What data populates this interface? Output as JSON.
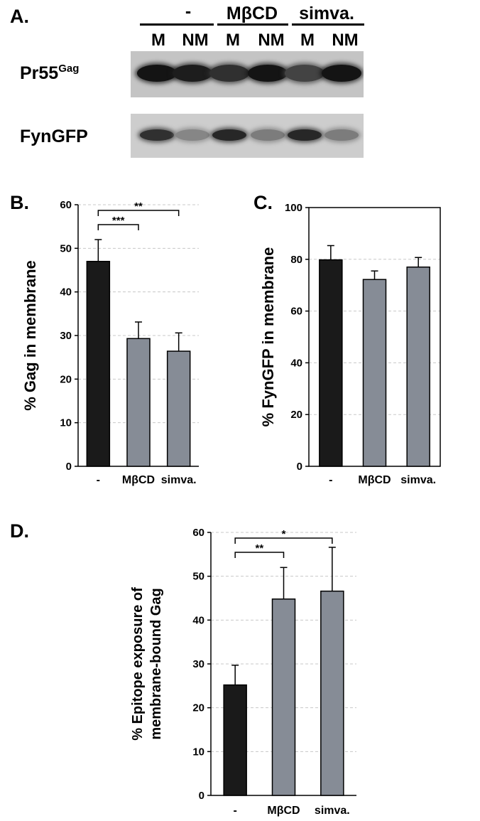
{
  "panels": {
    "A": {
      "label": "A."
    },
    "B": {
      "label": "B."
    },
    "C": {
      "label": "C."
    },
    "D": {
      "label": "D."
    }
  },
  "blot": {
    "group_headers": [
      "-",
      "MβCD",
      "simva."
    ],
    "lane_labels": [
      "M",
      "NM",
      "M",
      "NM",
      "M",
      "NM"
    ],
    "rows": [
      {
        "label_main": "Pr55",
        "label_sup": "Gag",
        "intensities": [
          0.95,
          0.9,
          0.8,
          0.95,
          0.7,
          0.95
        ]
      },
      {
        "label_main": "FynGFP",
        "label_sup": "",
        "intensities": [
          0.8,
          0.35,
          0.85,
          0.4,
          0.85,
          0.4
        ]
      }
    ]
  },
  "chart_data": [
    {
      "panel": "B",
      "type": "bar",
      "categories": [
        "-",
        "MβCD",
        "simva."
      ],
      "values": [
        47,
        29.3,
        26.4
      ],
      "errors": [
        5,
        3.8,
        4.2
      ],
      "ylabel": "% Gag in membrane",
      "ylim": [
        0,
        60
      ],
      "yticks": [
        0,
        10,
        20,
        30,
        40,
        50,
        60
      ],
      "bar_colors": [
        "#1a1a1a",
        "#868c96",
        "#868c96"
      ],
      "grid": true,
      "significance": [
        {
          "from": 0,
          "to": 1,
          "label": "***"
        },
        {
          "from": 0,
          "to": 2,
          "label": "**"
        }
      ]
    },
    {
      "panel": "C",
      "type": "bar",
      "categories": [
        "-",
        "MβCD",
        "simva."
      ],
      "values": [
        79.8,
        72.2,
        77
      ],
      "errors": [
        5.5,
        3.3,
        3.7
      ],
      "ylabel": "% FynGFP in membrane",
      "ylim": [
        0,
        100
      ],
      "yticks": [
        0,
        20,
        40,
        60,
        80,
        100
      ],
      "bar_colors": [
        "#1a1a1a",
        "#868c96",
        "#868c96"
      ],
      "grid": true,
      "significance": []
    },
    {
      "panel": "D",
      "type": "bar",
      "categories": [
        "-",
        "MβCD",
        "simva."
      ],
      "values": [
        25.2,
        44.8,
        46.6
      ],
      "errors": [
        4.5,
        7.2,
        10
      ],
      "ylabel": "% Epitope exposure of",
      "ylabel2": "membrane-bound Gag",
      "ylim": [
        0,
        60
      ],
      "yticks": [
        0,
        10,
        20,
        30,
        40,
        50,
        60
      ],
      "bar_colors": [
        "#1a1a1a",
        "#868c96",
        "#868c96"
      ],
      "grid": true,
      "significance": [
        {
          "from": 0,
          "to": 1,
          "label": "**"
        },
        {
          "from": 0,
          "to": 2,
          "label": "*"
        }
      ]
    }
  ]
}
